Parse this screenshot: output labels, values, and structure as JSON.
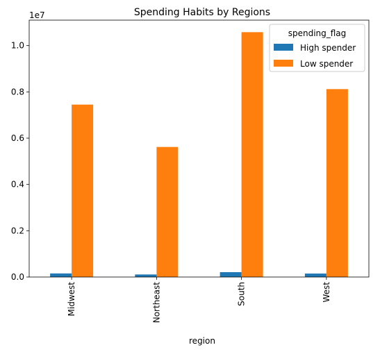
{
  "chart_data": {
    "type": "bar",
    "title": "Spending Habits by Regions",
    "xlabel": "region",
    "ylabel": "",
    "scale_label": "1e7",
    "categories": [
      "Midwest",
      "Northeast",
      "South",
      "West"
    ],
    "series": [
      {
        "name": "High spender",
        "color": "#1f77b4",
        "values": [
          155000,
          110000,
          210000,
          150000
        ]
      },
      {
        "name": "Low spender",
        "color": "#ff7f0e",
        "values": [
          7450000,
          5620000,
          10580000,
          8120000
        ]
      }
    ],
    "ylim": [
      0,
      11100000
    ],
    "yticks": [
      0,
      2000000,
      4000000,
      6000000,
      8000000,
      10000000
    ],
    "ytick_labels": [
      "0.0",
      "0.2",
      "0.4",
      "0.6",
      "0.8",
      "1.0"
    ],
    "grid": false,
    "legend": {
      "title": "spending_flag",
      "placement": "top-right"
    }
  }
}
